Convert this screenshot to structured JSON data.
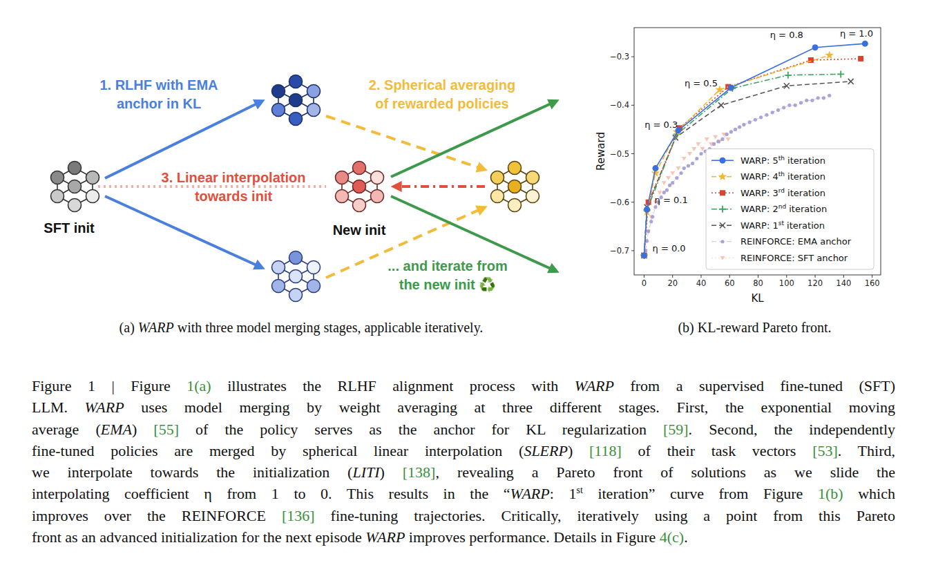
{
  "diagram": {
    "nodes": [
      {
        "label": "SFT init"
      },
      {
        "label": "New init"
      }
    ],
    "steps": [
      {
        "lines": [
          "1. RLHF with EMA",
          "anchor in KL"
        ],
        "color": "#4a7fe0"
      },
      {
        "lines": [
          "2. Spherical averaging",
          "of rewarded policies"
        ],
        "color": "#f2bc3a"
      },
      {
        "lines": [
          "3. Linear interpolation",
          "towards init"
        ],
        "color": "#e0503c"
      },
      {
        "lines": [
          "... and iterate from",
          "the new init ♻️"
        ],
        "color": "#3d9a4a"
      }
    ],
    "caption": [
      {
        "text": "(a) "
      },
      {
        "text": "WARP",
        "italic": true
      },
      {
        "text": " with three model merging stages, applicable iteratively."
      }
    ]
  },
  "chart_data": {
    "type": "line",
    "title": "(b) KL-reward Pareto front.",
    "x_label": "KL",
    "y_label": "Reward",
    "xlim": [
      -7,
      166
    ],
    "ylim": [
      -0.75,
      -0.24
    ],
    "xticks": [
      0,
      20,
      40,
      60,
      80,
      100,
      120,
      140,
      160
    ],
    "yticks": [
      {
        "value": -0.7,
        "label": "−0.7"
      },
      {
        "value": -0.6,
        "label": "−0.6"
      },
      {
        "value": -0.5,
        "label": "−0.5"
      },
      {
        "value": -0.4,
        "label": "−0.4"
      },
      {
        "value": -0.3,
        "label": "−0.3"
      }
    ],
    "grid": false,
    "legend": "lower right",
    "series": [
      {
        "name": "WARP: 5th iteration",
        "color": "#3b6fdc",
        "marker": "circle",
        "line_style": "solid",
        "x": [
          0,
          2,
          8,
          24,
          61,
          120,
          155
        ],
        "values": [
          -0.71,
          -0.615,
          -0.53,
          -0.452,
          -0.364,
          -0.281,
          -0.273
        ]
      },
      {
        "name": "WARP: 4th iteration",
        "color": "#f0b732",
        "marker": "star",
        "line_style": "dashed",
        "x": [
          0,
          2,
          8,
          23,
          53,
          130
        ],
        "values": [
          -0.71,
          -0.62,
          -0.54,
          -0.455,
          -0.368,
          -0.297
        ]
      },
      {
        "name": "WARP: 3rd iteration",
        "color": "#d6452f",
        "marker": "square",
        "line_style": "dotted",
        "x": [
          0,
          3,
          25,
          59,
          117,
          152
        ],
        "values": [
          -0.71,
          -0.6,
          -0.447,
          -0.362,
          -0.307,
          -0.304
        ]
      },
      {
        "name": "WARP: 2nd iteration",
        "color": "#3da55d",
        "marker": "plus",
        "line_style": "dashdot",
        "x": [
          0,
          2,
          23,
          62,
          101,
          138
        ],
        "values": [
          -0.71,
          -0.616,
          -0.46,
          -0.365,
          -0.338,
          -0.336
        ]
      },
      {
        "name": "WARP: 1st iteration",
        "color": "#555555",
        "marker": "x",
        "line_style": "dashed",
        "x": [
          0,
          2,
          22,
          54,
          100,
          145
        ],
        "values": [
          -0.71,
          -0.61,
          -0.467,
          -0.4,
          -0.36,
          -0.351
        ]
      },
      {
        "name": "REINFORCE: EMA anchor",
        "color": "#9b97d1",
        "marker": "dot",
        "line_style": "dashed",
        "x": [
          1,
          2,
          3,
          5,
          6,
          8,
          10,
          12,
          14,
          16,
          18,
          20,
          23,
          26,
          28,
          31,
          34,
          37,
          40,
          43,
          46,
          49,
          52,
          55,
          58,
          61,
          64,
          67,
          70,
          74,
          78,
          82,
          86,
          90,
          94,
          98,
          102,
          106,
          110,
          114,
          118,
          122,
          126,
          130
        ],
        "values": [
          -0.7,
          -0.68,
          -0.66,
          -0.64,
          -0.63,
          -0.61,
          -0.6,
          -0.59,
          -0.58,
          -0.575,
          -0.565,
          -0.56,
          -0.55,
          -0.54,
          -0.53,
          -0.525,
          -0.52,
          -0.51,
          -0.5,
          -0.495,
          -0.49,
          -0.48,
          -0.475,
          -0.47,
          -0.46,
          -0.455,
          -0.45,
          -0.445,
          -0.44,
          -0.435,
          -0.43,
          -0.425,
          -0.42,
          -0.415,
          -0.41,
          -0.405,
          -0.4,
          -0.4,
          -0.395,
          -0.39,
          -0.39,
          -0.385,
          -0.385,
          -0.38
        ]
      },
      {
        "name": "REINFORCE: SFT anchor",
        "color": "#f5b8a3",
        "marker": "triangle",
        "line_style": "dotted",
        "x": [
          1,
          3,
          5,
          8,
          11,
          14,
          17,
          20,
          24,
          28,
          32,
          35,
          38,
          41,
          44,
          47,
          50,
          53,
          56,
          59
        ],
        "values": [
          -0.7,
          -0.66,
          -0.63,
          -0.6,
          -0.58,
          -0.56,
          -0.55,
          -0.54,
          -0.53,
          -0.51,
          -0.5,
          -0.49,
          -0.48,
          -0.49,
          -0.47,
          -0.48,
          -0.465,
          -0.475,
          -0.46,
          -0.47
        ]
      }
    ],
    "annotations": [
      {
        "text": "η = 1.0",
        "x": 149,
        "y": -0.258
      },
      {
        "text": "η = 0.8",
        "x": 100,
        "y": -0.262
      },
      {
        "text": "η = 0.5",
        "x": 40,
        "y": -0.361
      },
      {
        "text": "η = 0.3",
        "x": 12,
        "y": -0.447
      },
      {
        "text": "η = 0.1",
        "x": 19,
        "y": -0.602
      },
      {
        "text": "η = 0.0",
        "x": 17.5,
        "y": -0.702
      }
    ]
  },
  "caption": {
    "lines": [
      [
        {
          "text": "Figure 1 | Figure "
        },
        {
          "text": "1(a)",
          "link": true
        },
        {
          "text": " illustrates the RLHF alignment process with "
        },
        {
          "text": "WARP",
          "italic": true
        },
        {
          "text": " from a supervised fine-tuned (SFT)"
        }
      ],
      [
        {
          "text": "LLM. "
        },
        {
          "text": "WARP",
          "italic": true
        },
        {
          "text": " uses model merging by weight averaging at three different stages. First, the exponential moving"
        }
      ],
      [
        {
          "text": "average ("
        },
        {
          "text": "EMA",
          "italic": true
        },
        {
          "text": ") "
        },
        {
          "text": "[55]",
          "link": true
        },
        {
          "text": " of the policy serves as the anchor for KL regularization "
        },
        {
          "text": "[59]",
          "link": true
        },
        {
          "text": ". Second, the independently"
        }
      ],
      [
        {
          "text": "fine-tuned policies are merged by spherical linear interpolation ("
        },
        {
          "text": "SLERP",
          "italic": true
        },
        {
          "text": ") "
        },
        {
          "text": "[118]",
          "link": true
        },
        {
          "text": " of their task vectors "
        },
        {
          "text": "[53]",
          "link": true
        },
        {
          "text": ". Third,"
        }
      ],
      [
        {
          "text": "we interpolate towards the initialization ("
        },
        {
          "text": "LITI",
          "italic": true
        },
        {
          "text": ") "
        },
        {
          "text": "[138]",
          "link": true
        },
        {
          "text": ", revealing a Pareto front of solutions as we slide the"
        }
      ],
      [
        {
          "text": "interpolating coefficient η from 1 to 0. This results in the “"
        },
        {
          "text": "WARP",
          "italic": true
        },
        {
          "text": ": 1"
        },
        {
          "text": "st",
          "sup": true
        },
        {
          "text": " iteration” curve from Figure "
        },
        {
          "text": "1(b)",
          "link": true
        },
        {
          "text": " which"
        }
      ],
      [
        {
          "text": "improves over the REINFORCE "
        },
        {
          "text": "[136]",
          "link": true
        },
        {
          "text": " fine-tuning trajectories. Critically, iteratively using a point from this Pareto"
        }
      ],
      [
        {
          "text": "front as an advanced initialization for the next episode "
        },
        {
          "text": "WARP",
          "italic": true
        },
        {
          "text": " improves performance. Details in Figure "
        },
        {
          "text": "4(c)",
          "link": true
        },
        {
          "text": "."
        }
      ]
    ]
  }
}
